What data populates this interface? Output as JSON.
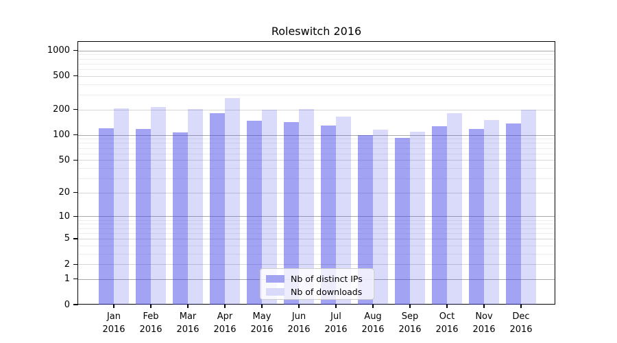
{
  "chart_data": {
    "type": "bar",
    "title": "Roleswitch 2016",
    "x_months": [
      "Jan",
      "Feb",
      "Mar",
      "Apr",
      "May",
      "Jun",
      "Jul",
      "Aug",
      "Sep",
      "Oct",
      "Nov",
      "Dec"
    ],
    "x_year": "2016",
    "categories": [
      "Jan 2016",
      "Feb 2016",
      "Mar 2016",
      "Apr 2016",
      "May 2016",
      "Jun 2016",
      "Jul 2016",
      "Aug 2016",
      "Sep 2016",
      "Oct 2016",
      "Nov 2016",
      "Dec 2016"
    ],
    "series": [
      {
        "name": "Nb of distinct IPs",
        "color": "rgba(60,60,230,0.47)",
        "legend_color": "#a3a3f3",
        "values": [
          120,
          117,
          108,
          180,
          147,
          141,
          129,
          100,
          92,
          127,
          118,
          136
        ]
      },
      {
        "name": "Nb of downloads",
        "color": "rgba(60,60,230,0.19)",
        "legend_color": "#d9d9fa",
        "values": [
          207,
          214,
          201,
          272,
          198,
          203,
          166,
          116,
          110,
          182,
          151,
          200
        ]
      }
    ],
    "y_ticks": [
      0,
      1,
      2,
      5,
      10,
      20,
      50,
      100,
      200,
      500,
      1000
    ],
    "y_scale": "symlog-ln(1+x)",
    "ylim": [
      0,
      1268
    ],
    "grid": "horizontal",
    "grid_colors": {
      "major": "#a8a8a8",
      "mid": "#d6d6d6",
      "minor": "#ececec"
    },
    "legend_position": "lower center"
  }
}
